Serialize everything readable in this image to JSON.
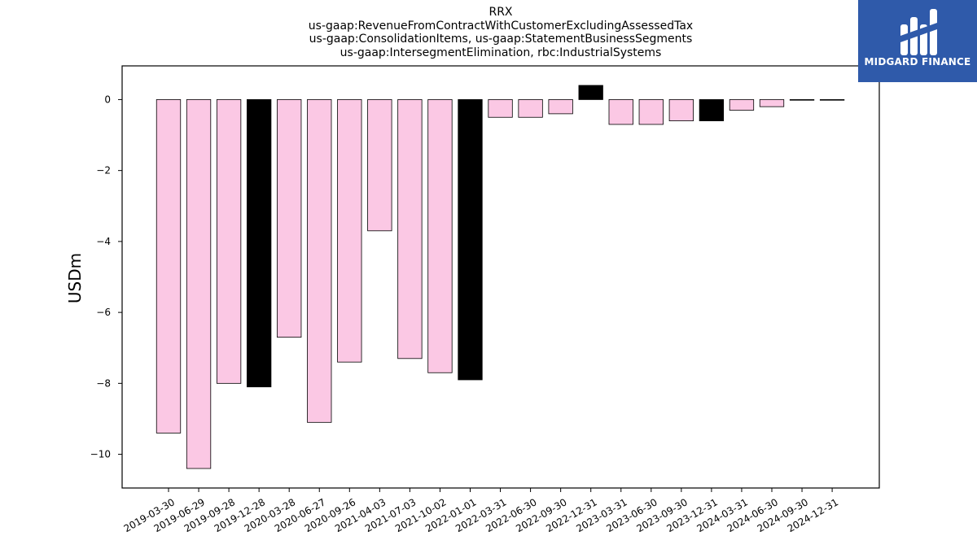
{
  "title_lines": [
    "RRX",
    "us-gaap:RevenueFromContractWithCustomerExcludingAssessedTax",
    "us-gaap:ConsolidationItems, us-gaap:StatementBusinessSegments",
    "us-gaap:IntersegmentElimination, rbc:IndustrialSystems"
  ],
  "logo": {
    "text": "MIDGARD FINANCE",
    "background": "#2f5aaa"
  },
  "chart_data": {
    "type": "bar",
    "ylabel": "USDm",
    "xlabel": "",
    "ylim": [
      -10.95,
      0.95
    ],
    "yticks": [
      0,
      -2,
      -4,
      -6,
      -8,
      -10
    ],
    "grid": false,
    "categories": [
      "2019-03-30",
      "2019-06-29",
      "2019-09-28",
      "2019-12-28",
      "2020-03-28",
      "2020-06-27",
      "2020-09-26",
      "2021-04-03",
      "2021-07-03",
      "2021-10-02",
      "2022-01-01",
      "2022-03-31",
      "2022-06-30",
      "2022-09-30",
      "2022-12-31",
      "2023-03-31",
      "2023-06-30",
      "2023-09-30",
      "2023-12-31",
      "2024-03-31",
      "2024-06-30",
      "2024-09-30",
      "2024-12-31"
    ],
    "values": [
      -9.4,
      -10.4,
      -8.0,
      -8.1,
      -6.7,
      -9.1,
      -7.4,
      -3.7,
      -7.3,
      -7.7,
      -7.9,
      -0.5,
      -0.5,
      -0.4,
      0.4,
      -0.7,
      -0.7,
      -0.6,
      -0.6,
      -0.3,
      -0.2,
      0.0,
      0.0
    ],
    "bar_colors": [
      "#fbc8e4",
      "#fbc8e4",
      "#fbc8e4",
      "#000000",
      "#fbc8e4",
      "#fbc8e4",
      "#fbc8e4",
      "#fbc8e4",
      "#fbc8e4",
      "#fbc8e4",
      "#000000",
      "#fbc8e4",
      "#fbc8e4",
      "#fbc8e4",
      "#000000",
      "#fbc8e4",
      "#fbc8e4",
      "#fbc8e4",
      "#000000",
      "#fbc8e4",
      "#fbc8e4",
      "#fbc8e4",
      "#fbc8e4"
    ]
  }
}
